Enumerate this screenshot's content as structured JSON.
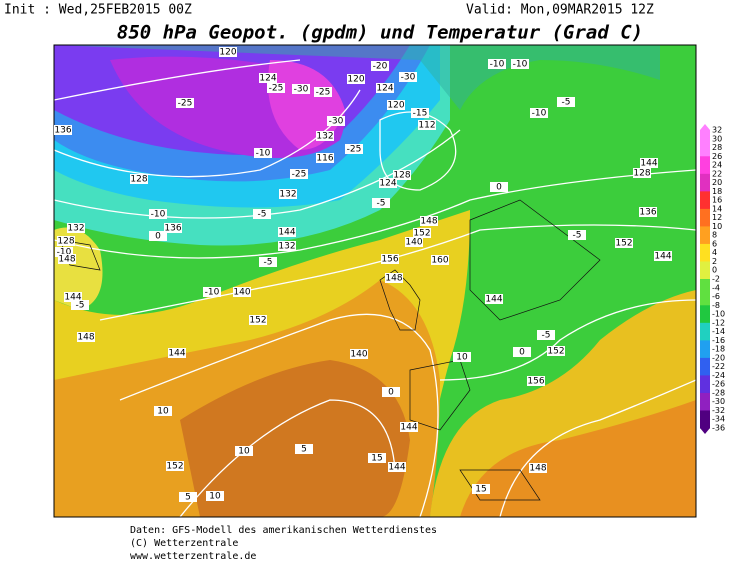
{
  "header": {
    "init": "Init : Wed,25FEB2015 00Z",
    "valid": "Valid: Mon,09MAR2015 12Z",
    "title": "850 hPa Geopot. (gpdm) und Temperatur (Grad C)"
  },
  "legend": {
    "labels": [
      "32",
      "30",
      "28",
      "26",
      "24",
      "22",
      "20",
      "18",
      "16",
      "14",
      "12",
      "10",
      "8",
      "6",
      "4",
      "2",
      "0",
      "-2",
      "-4",
      "-6",
      "-8",
      "-10",
      "-12",
      "-14",
      "-16",
      "-18",
      "-20",
      "-22",
      "-24",
      "-26",
      "-28",
      "-30",
      "-32",
      "-34",
      "-36"
    ]
  },
  "map": {
    "labels": [
      "120",
      "120",
      "124",
      "-25",
      "-30",
      "-25",
      "-30",
      "124",
      "-20",
      "-10",
      "-10",
      "-5",
      "-10",
      "120",
      "-15",
      "112",
      "-25",
      "136",
      "-30",
      "132",
      "-10",
      "-25",
      "116",
      "128",
      "-25",
      "128",
      "124",
      "132",
      "-5",
      "0",
      "144",
      "128",
      "-10",
      "-5",
      "136",
      "144",
      "148",
      "152",
      "140",
      "132",
      "136",
      "0",
      "132",
      "128",
      "-10",
      "148",
      "-5",
      "152",
      "144",
      "-5",
      "156",
      "160",
      "148",
      "-10",
      "140",
      "144",
      "-5",
      "144",
      "152",
      "148",
      "-5",
      "144",
      "0",
      "152",
      "10",
      "140",
      "156",
      "0",
      "10",
      "144",
      "10",
      "5",
      "152",
      "15",
      "144",
      "148",
      "10",
      "5",
      "15"
    ]
  },
  "footer": {
    "lines": [
      "Daten: GFS-Modell des amerikanischen Wetterdienstes",
      "(C) Wetterzentrale",
      "www.wetterzentrale.de"
    ]
  }
}
